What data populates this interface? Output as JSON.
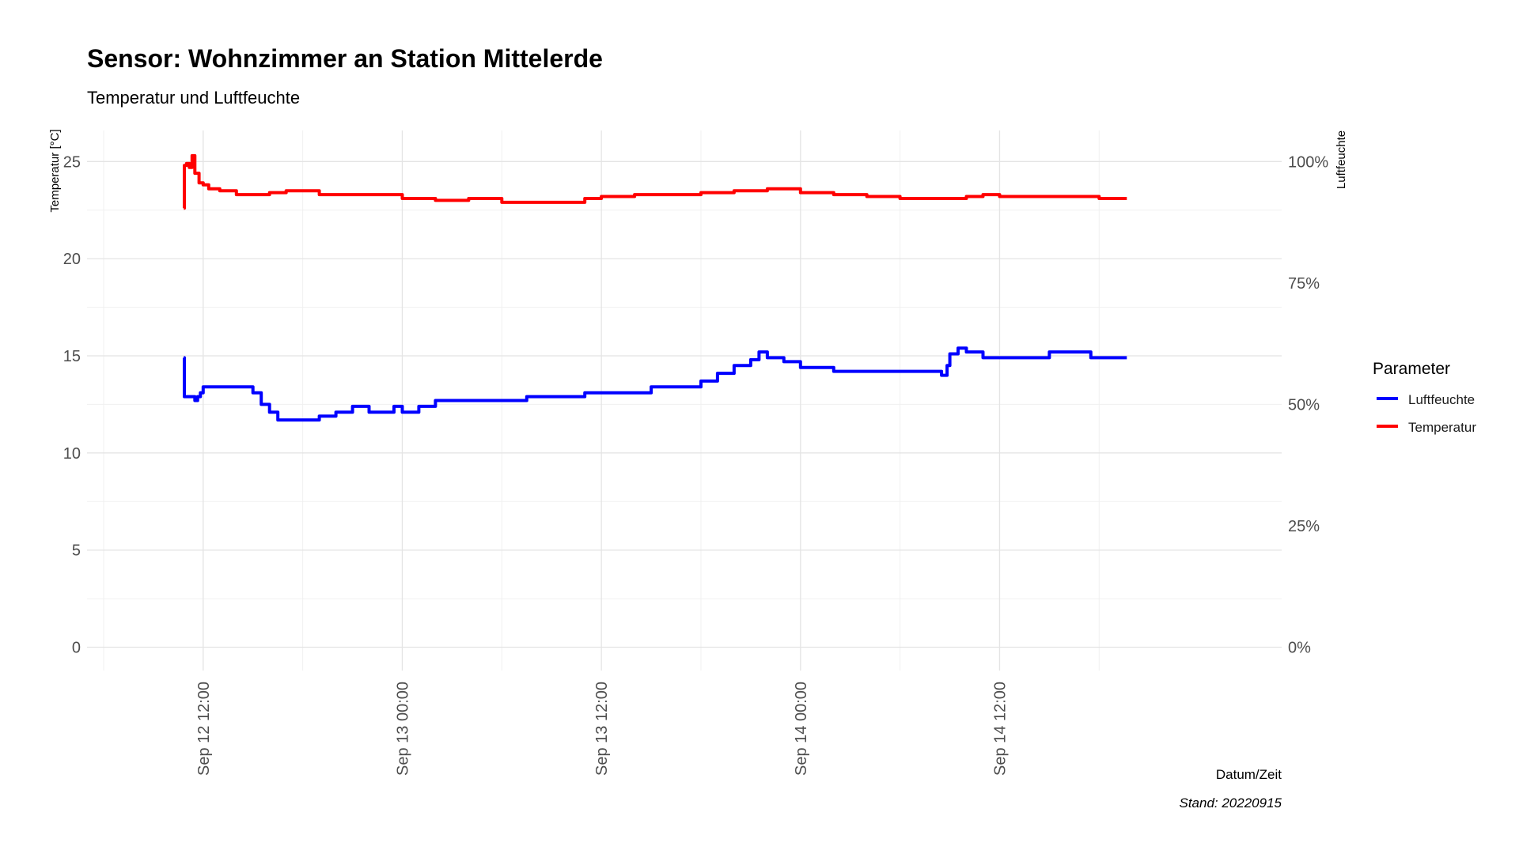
{
  "chart_data": {
    "type": "line",
    "title": "Sensor: Wohnzimmer an Station Mittelerde",
    "subtitle": "Temperatur und Luftfeuchte",
    "xlabel": "Datum/Zeit",
    "ylabel": "Temperatur [°C]",
    "y2label": "Luftfeuchte",
    "caption": "Stand: 20220915",
    "x_unit": "datetime 2022-09",
    "xlim": [
      "2022-09-12 05:00",
      "2022-09-15 05:00"
    ],
    "ylim": [
      -1.2,
      26.6
    ],
    "y_ticks": [
      "0",
      "5",
      "10",
      "15",
      "20",
      "25"
    ],
    "y2_ticks": [
      "0%",
      "25%",
      "50%",
      "75%",
      "100%"
    ],
    "y2_note": "100% humidity corresponds to 25 °C on the left axis",
    "x_ticks": [
      "Sep 12 12:00",
      "Sep 13 00:00",
      "Sep 13 12:00",
      "Sep 14 00:00",
      "Sep 14 12:00"
    ],
    "grid": true,
    "legend": {
      "title": "Parameter",
      "position": "right",
      "entries": [
        {
          "name": "Luftfeuchte",
          "color": "#0000ff"
        },
        {
          "name": "Temperatur",
          "color": "#ff0000"
        }
      ]
    },
    "series": [
      {
        "name": "Temperatur",
        "color": "#ff0000",
        "points": [
          [
            "2022-09-12 10:50",
            22.6
          ],
          [
            "2022-09-12 10:52",
            24.8
          ],
          [
            "2022-09-12 11:00",
            24.9
          ],
          [
            "2022-09-12 11:10",
            24.7
          ],
          [
            "2022-09-12 11:20",
            25.3
          ],
          [
            "2022-09-12 11:30",
            24.4
          ],
          [
            "2022-09-12 11:45",
            23.9
          ],
          [
            "2022-09-12 12:00",
            23.8
          ],
          [
            "2022-09-12 12:20",
            23.6
          ],
          [
            "2022-09-12 13:00",
            23.5
          ],
          [
            "2022-09-12 14:00",
            23.3
          ],
          [
            "2022-09-12 15:00",
            23.3
          ],
          [
            "2022-09-12 16:00",
            23.4
          ],
          [
            "2022-09-12 17:00",
            23.5
          ],
          [
            "2022-09-12 18:00",
            23.5
          ],
          [
            "2022-09-12 19:00",
            23.3
          ],
          [
            "2022-09-12 20:00",
            23.3
          ],
          [
            "2022-09-12 22:00",
            23.3
          ],
          [
            "2022-09-13 00:00",
            23.1
          ],
          [
            "2022-09-13 02:00",
            23.0
          ],
          [
            "2022-09-13 04:00",
            23.1
          ],
          [
            "2022-09-13 06:00",
            22.9
          ],
          [
            "2022-09-13 08:00",
            22.9
          ],
          [
            "2022-09-13 10:00",
            22.9
          ],
          [
            "2022-09-13 11:00",
            23.1
          ],
          [
            "2022-09-13 12:00",
            23.2
          ],
          [
            "2022-09-13 14:00",
            23.3
          ],
          [
            "2022-09-13 16:00",
            23.3
          ],
          [
            "2022-09-13 18:00",
            23.4
          ],
          [
            "2022-09-13 20:00",
            23.5
          ],
          [
            "2022-09-13 22:00",
            23.6
          ],
          [
            "2022-09-14 00:00",
            23.4
          ],
          [
            "2022-09-14 02:00",
            23.3
          ],
          [
            "2022-09-14 04:00",
            23.2
          ],
          [
            "2022-09-14 06:00",
            23.1
          ],
          [
            "2022-09-14 08:00",
            23.1
          ],
          [
            "2022-09-14 10:00",
            23.2
          ],
          [
            "2022-09-14 11:00",
            23.3
          ],
          [
            "2022-09-14 12:00",
            23.2
          ],
          [
            "2022-09-14 14:00",
            23.2
          ],
          [
            "2022-09-14 16:00",
            23.2
          ],
          [
            "2022-09-14 18:00",
            23.1
          ],
          [
            "2022-09-14 19:40",
            23.1
          ]
        ]
      },
      {
        "name": "Luftfeuchte",
        "color": "#0000ff",
        "axis": "y2",
        "unit": "%",
        "points": [
          [
            "2022-09-12 10:50",
            59.6
          ],
          [
            "2022-09-12 10:52",
            51.6
          ],
          [
            "2022-09-12 11:20",
            51.6
          ],
          [
            "2022-09-12 11:30",
            50.8
          ],
          [
            "2022-09-12 11:40",
            51.6
          ],
          [
            "2022-09-12 11:50",
            52.4
          ],
          [
            "2022-09-12 12:00",
            53.6
          ],
          [
            "2022-09-12 14:00",
            53.6
          ],
          [
            "2022-09-12 15:00",
            52.4
          ],
          [
            "2022-09-12 15:30",
            50.0
          ],
          [
            "2022-09-12 16:00",
            48.4
          ],
          [
            "2022-09-12 16:30",
            46.8
          ],
          [
            "2022-09-12 18:00",
            46.8
          ],
          [
            "2022-09-12 19:00",
            47.6
          ],
          [
            "2022-09-12 20:00",
            48.4
          ],
          [
            "2022-09-12 21:00",
            49.6
          ],
          [
            "2022-09-12 22:00",
            48.4
          ],
          [
            "2022-09-12 23:00",
            48.4
          ],
          [
            "2022-09-12 23:30",
            49.6
          ],
          [
            "2022-09-13 00:00",
            48.4
          ],
          [
            "2022-09-13 01:00",
            49.6
          ],
          [
            "2022-09-13 02:00",
            50.8
          ],
          [
            "2022-09-13 04:00",
            50.8
          ],
          [
            "2022-09-13 07:00",
            50.8
          ],
          [
            "2022-09-13 07:30",
            51.6
          ],
          [
            "2022-09-13 10:00",
            51.6
          ],
          [
            "2022-09-13 11:00",
            52.4
          ],
          [
            "2022-09-13 13:00",
            52.4
          ],
          [
            "2022-09-13 15:00",
            53.6
          ],
          [
            "2022-09-13 17:00",
            53.6
          ],
          [
            "2022-09-13 18:00",
            54.8
          ],
          [
            "2022-09-13 19:00",
            56.4
          ],
          [
            "2022-09-13 20:00",
            58.0
          ],
          [
            "2022-09-13 21:00",
            59.2
          ],
          [
            "2022-09-13 21:30",
            60.8
          ],
          [
            "2022-09-13 22:00",
            59.6
          ],
          [
            "2022-09-13 23:00",
            58.8
          ],
          [
            "2022-09-14 00:00",
            57.6
          ],
          [
            "2022-09-14 02:00",
            56.8
          ],
          [
            "2022-09-14 04:00",
            56.8
          ],
          [
            "2022-09-14 06:00",
            56.8
          ],
          [
            "2022-09-14 08:00",
            56.8
          ],
          [
            "2022-09-14 08:30",
            56.0
          ],
          [
            "2022-09-14 08:50",
            58.0
          ],
          [
            "2022-09-14 09:00",
            60.4
          ],
          [
            "2022-09-14 09:30",
            61.6
          ],
          [
            "2022-09-14 10:00",
            60.8
          ],
          [
            "2022-09-14 11:00",
            59.6
          ],
          [
            "2022-09-14 13:00",
            59.6
          ],
          [
            "2022-09-14 14:00",
            59.6
          ],
          [
            "2022-09-14 15:00",
            60.8
          ],
          [
            "2022-09-14 17:00",
            60.8
          ],
          [
            "2022-09-14 17:30",
            59.6
          ],
          [
            "2022-09-14 19:40",
            59.6
          ]
        ]
      }
    ]
  }
}
